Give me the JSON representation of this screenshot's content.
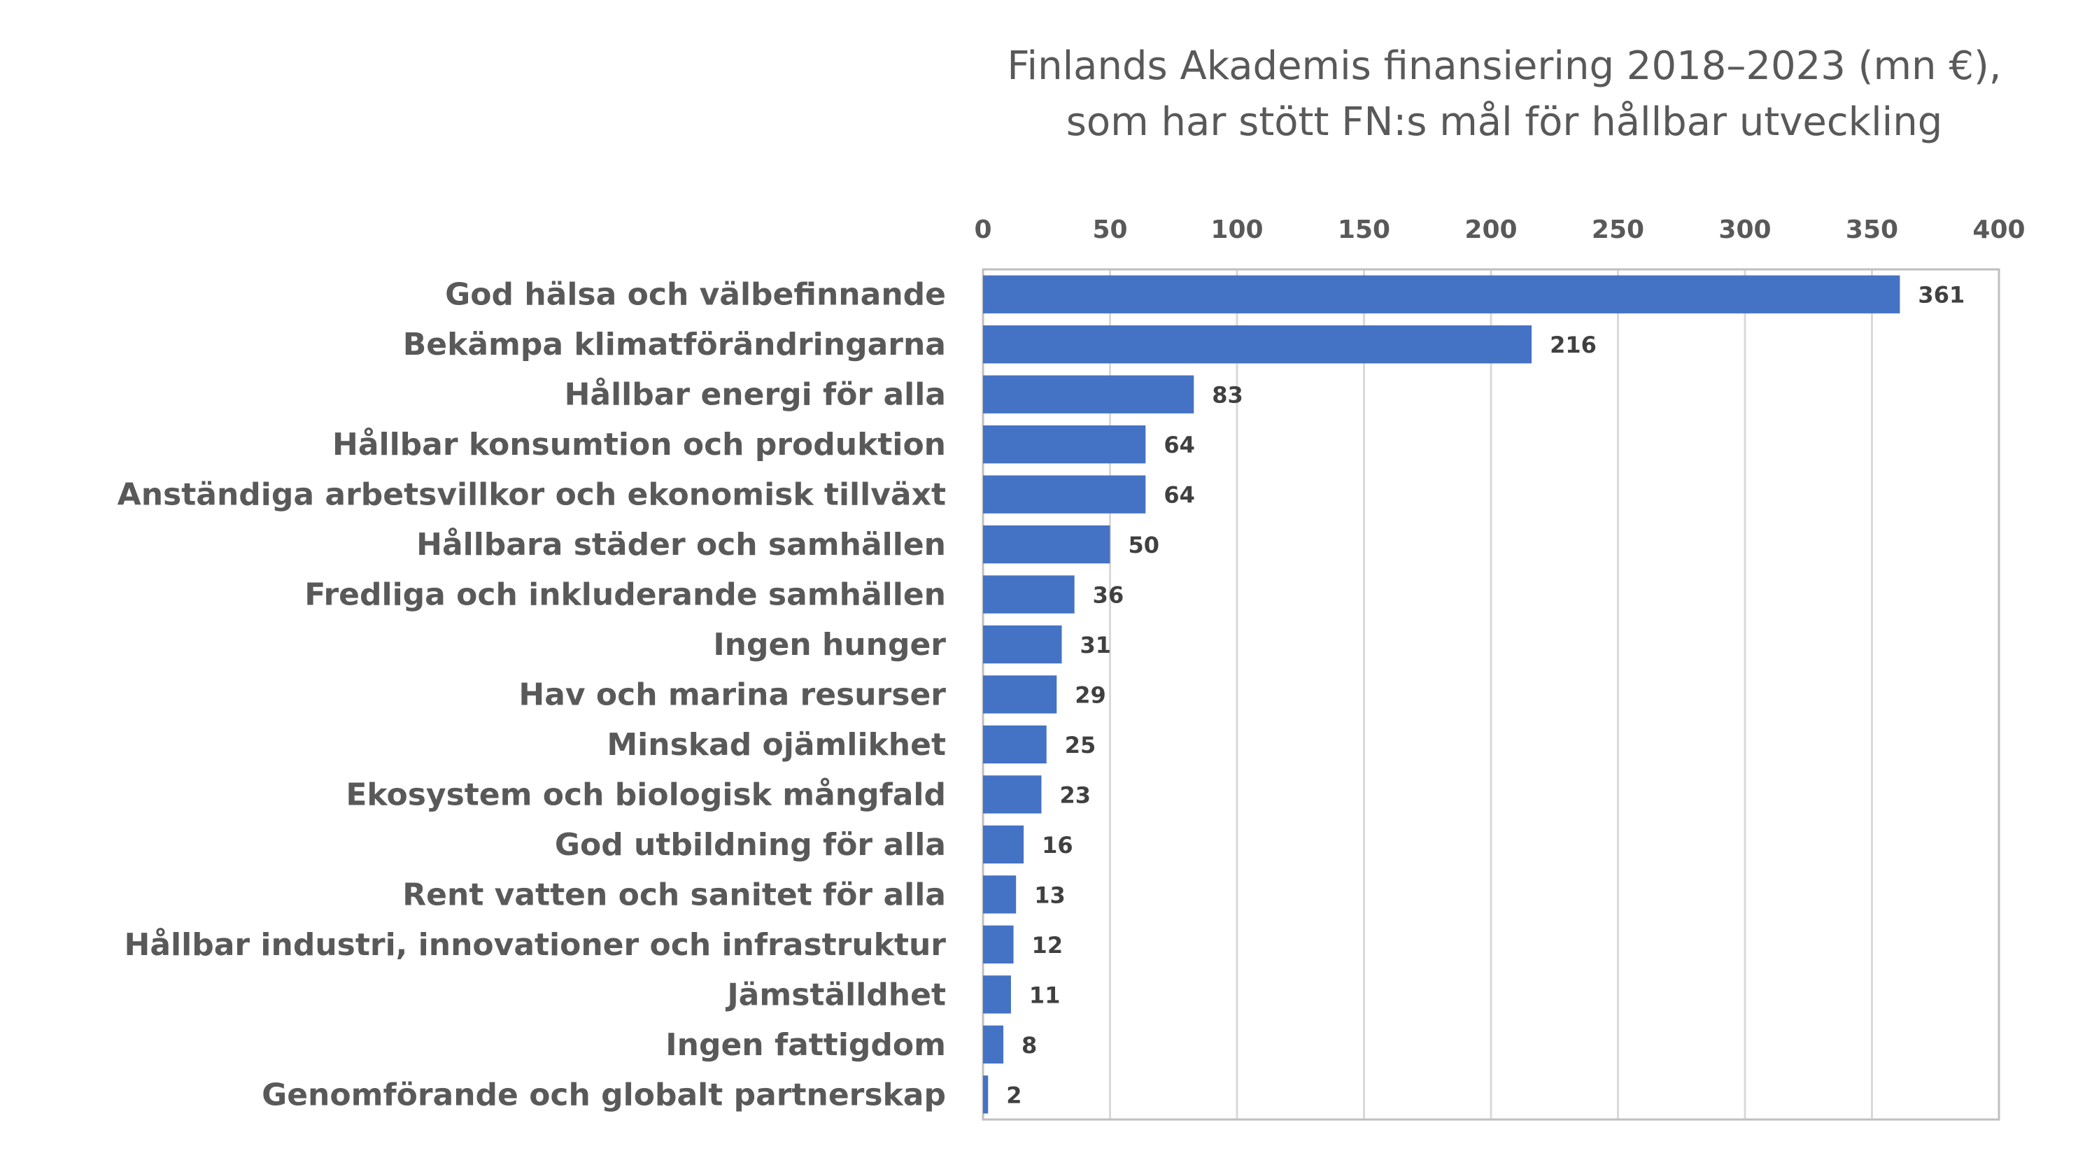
{
  "chart_data": {
    "type": "bar",
    "orientation": "horizontal",
    "title": "Finlands Akademis finansiering 2018–2023 (mn €),",
    "subtitle": "som har stött FN:s mål för hållbar utveckling",
    "xlabel": "",
    "ylabel": "",
    "xlim": [
      0,
      400
    ],
    "xticks": [
      0,
      50,
      100,
      150,
      200,
      250,
      300,
      350,
      400
    ],
    "grid": true,
    "axis_position": "top",
    "categories": [
      "God hälsa och välbefinnande",
      "Bekämpa klimatförändringarna",
      "Hållbar energi för alla",
      "Hållbar konsumtion och produktion",
      "Anständiga arbetsvillkor och ekonomisk tillväxt",
      "Hållbara städer och samhällen",
      "Fredliga och inkluderande samhällen",
      "Ingen hunger",
      "Hav och marina resurser",
      "Minskad ojämlikhet",
      "Ekosystem och biologisk mångfald",
      "God utbildning för alla",
      "Rent vatten och sanitet för alla",
      "Hållbar industri, innovationer och infrastruktur",
      "Jämställdhet",
      "Ingen fattigdom",
      "Genomförande och globalt partnerskap"
    ],
    "values": [
      361,
      216,
      83,
      64,
      64,
      50,
      36,
      31,
      29,
      25,
      23,
      16,
      13,
      12,
      11,
      8,
      2
    ],
    "value_labels": [
      "361",
      "216",
      "83",
      "64",
      "64",
      "50",
      "36",
      "31",
      "29",
      "25",
      "23",
      "16",
      "13",
      "12",
      "11",
      "8",
      "2"
    ],
    "bar_color": "#4472c4",
    "grid_color": "#d9d9d9",
    "text_color": "#595959"
  }
}
